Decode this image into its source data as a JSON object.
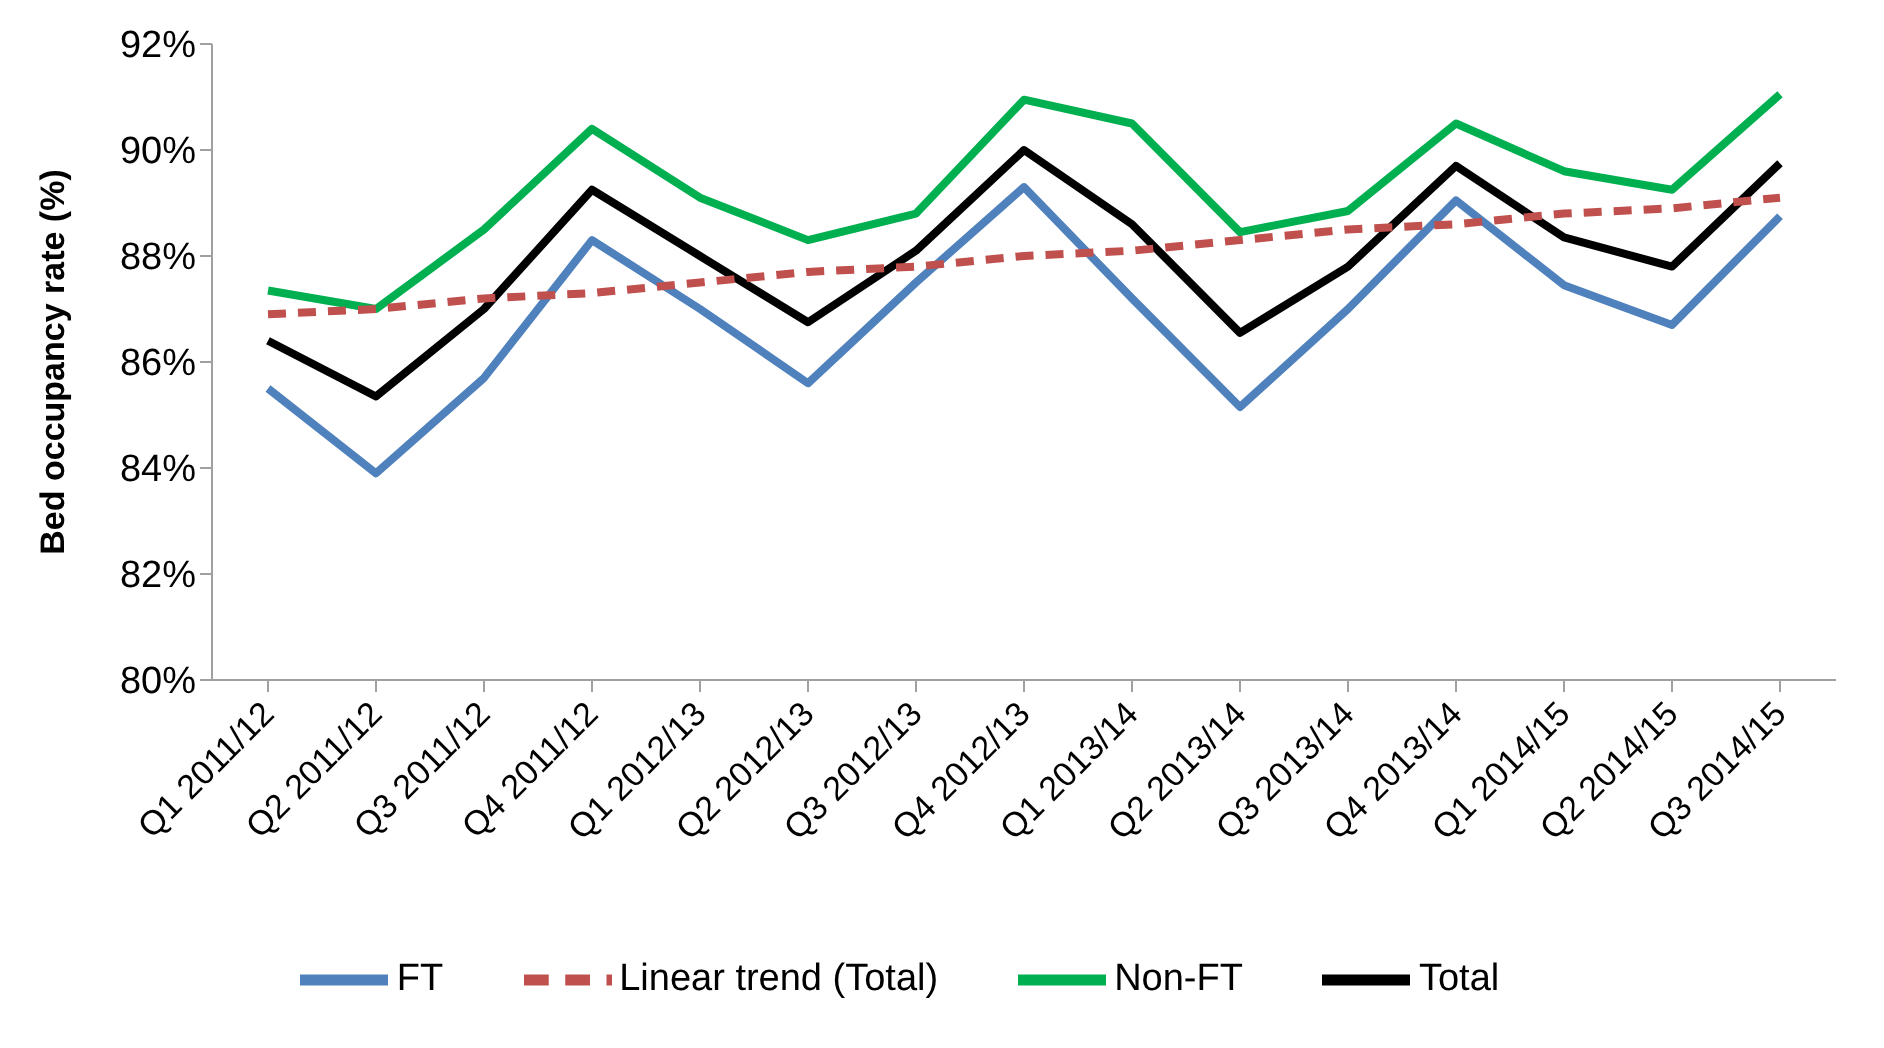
{
  "chart_data": {
    "type": "line",
    "ylabel": "Bed occupancy rate (%)",
    "categories": [
      "Q1 2011/12",
      "Q2 2011/12",
      "Q3 2011/12",
      "Q4 2011/12",
      "Q1 2012/13",
      "Q2 2012/13",
      "Q3 2012/13",
      "Q4 2012/13",
      "Q1 2013/14",
      "Q2 2013/14",
      "Q3 2013/14",
      "Q4 2013/14",
      "Q1 2014/15",
      "Q2 2014/15",
      "Q3 2014/15"
    ],
    "series": [
      {
        "name": "Total",
        "color": "#000000",
        "values": [
          86.4,
          85.35,
          87.0,
          89.25,
          88.0,
          86.75,
          88.1,
          90.0,
          88.6,
          86.55,
          87.8,
          89.7,
          88.35,
          87.8,
          89.75
        ]
      },
      {
        "name": "FT",
        "color": "#4f81bd",
        "values": [
          85.5,
          83.9,
          85.7,
          88.3,
          87.0,
          85.6,
          87.5,
          89.3,
          87.2,
          85.15,
          87.0,
          89.05,
          87.45,
          86.7,
          88.75
        ]
      },
      {
        "name": "Non-FT",
        "color": "#00b050",
        "values": [
          87.35,
          87.0,
          88.5,
          90.4,
          89.1,
          88.3,
          88.8,
          90.95,
          90.5,
          88.45,
          88.85,
          90.5,
          89.6,
          89.25,
          91.05
        ]
      },
      {
        "name": "Linear trend (Total)",
        "type": "line",
        "line_style": "dashed",
        "color": "#c0504d",
        "values": [
          86.9,
          87.0,
          87.2,
          87.3,
          87.5,
          87.7,
          87.8,
          88.0,
          88.1,
          88.3,
          88.5,
          88.6,
          88.8,
          88.9,
          89.1
        ]
      }
    ],
    "ylim": [
      80,
      92
    ],
    "yticks": [
      {
        "value": 80,
        "label": "80%"
      },
      {
        "value": 82,
        "label": "82%"
      },
      {
        "value": 84,
        "label": "84%"
      },
      {
        "value": 86,
        "label": "86%"
      },
      {
        "value": 88,
        "label": "88%"
      },
      {
        "value": 90,
        "label": "90%"
      },
      {
        "value": 92,
        "label": "92%"
      }
    ],
    "grid": false,
    "legend": "bottom",
    "marker": "none",
    "line_style": "solid"
  }
}
